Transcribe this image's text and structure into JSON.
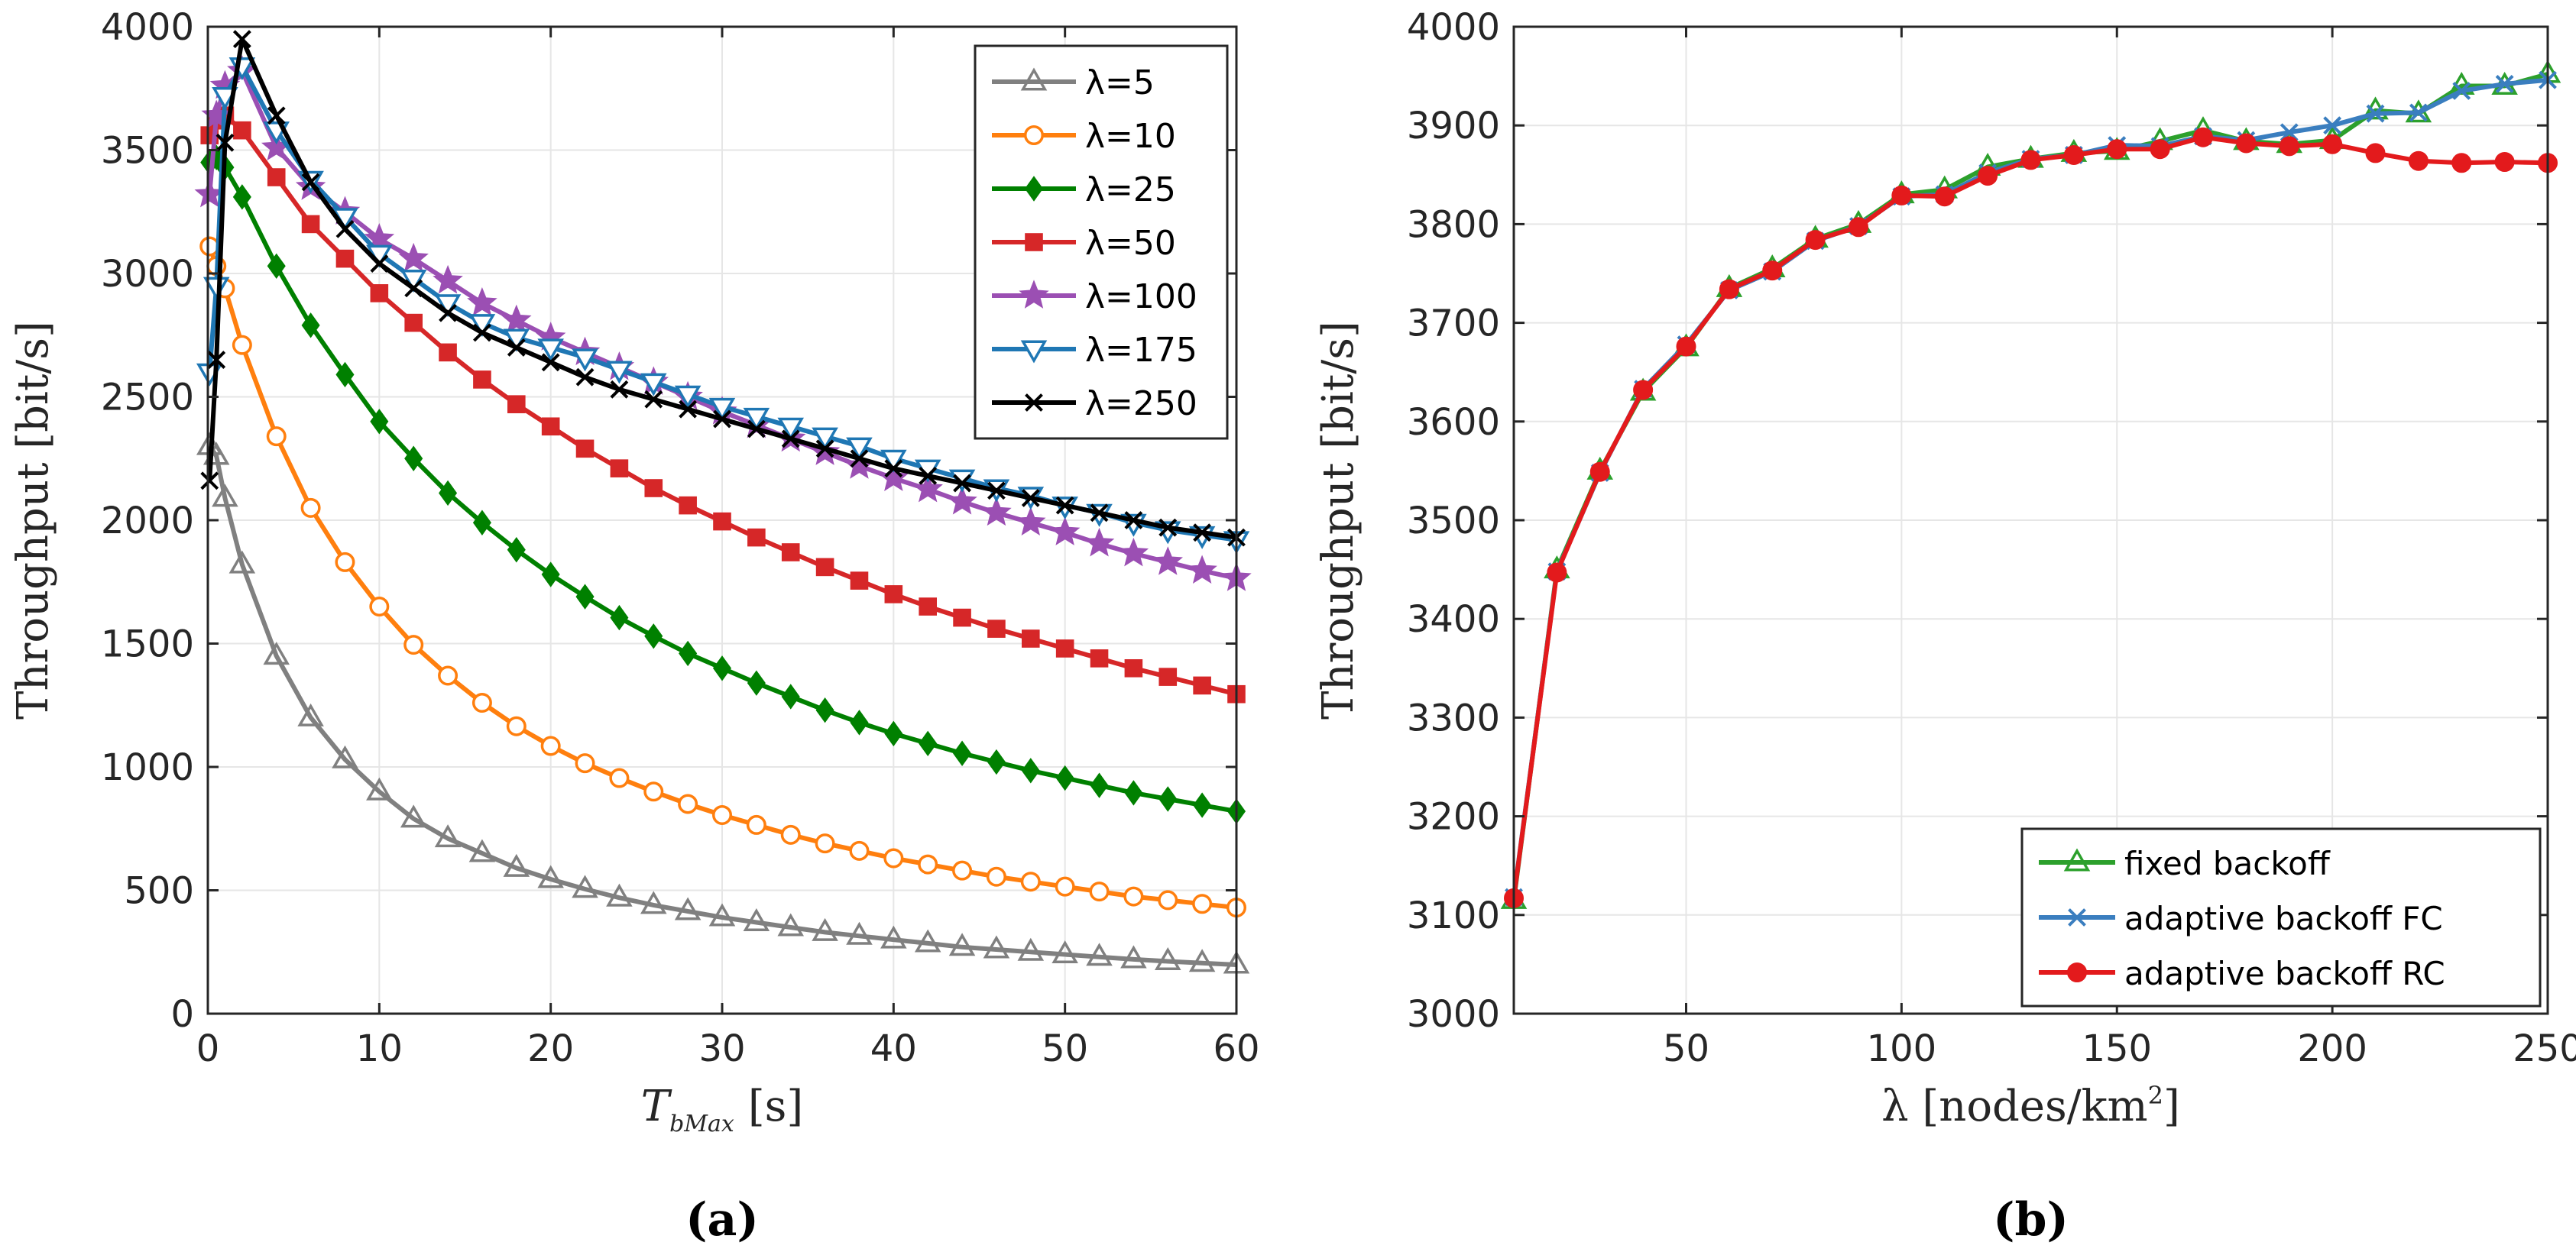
{
  "chart_data": [
    {
      "id": "a",
      "type": "line",
      "panel_label": "(a)",
      "xlabel": "T_bMax [s]",
      "xlabel_main": "T",
      "xlabel_sub": "bMax",
      "xlabel_unit": "[s]",
      "ylabel": "Throughput [bit/s]",
      "xlim": [
        0,
        60
      ],
      "ylim": [
        0,
        4000
      ],
      "xticks": [
        0,
        10,
        20,
        30,
        40,
        50,
        60
      ],
      "yticks": [
        0,
        500,
        1000,
        1500,
        2000,
        2500,
        3000,
        3500,
        4000
      ],
      "grid": true,
      "legend_position": "top-right",
      "x": [
        0.1,
        0.5,
        1,
        2,
        4,
        6,
        8,
        10,
        12,
        14,
        16,
        18,
        20,
        22,
        24,
        26,
        28,
        30,
        32,
        34,
        36,
        38,
        40,
        42,
        44,
        46,
        48,
        50,
        52,
        54,
        56,
        58,
        60
      ],
      "series": [
        {
          "name": "λ=5",
          "color": "#808080",
          "marker": "triangle-up",
          "values": [
            2300,
            2260,
            2090,
            1820,
            1450,
            1200,
            1030,
            900,
            790,
            710,
            650,
            590,
            545,
            505,
            470,
            440,
            415,
            390,
            370,
            350,
            330,
            315,
            300,
            285,
            270,
            260,
            250,
            240,
            230,
            220,
            212,
            205,
            198
          ]
        },
        {
          "name": "λ=10",
          "color": "#ff7f0e",
          "marker": "circle",
          "values": [
            3110,
            3030,
            2940,
            2710,
            2340,
            2050,
            1830,
            1650,
            1495,
            1370,
            1260,
            1165,
            1085,
            1015,
            955,
            900,
            850,
            805,
            765,
            725,
            690,
            660,
            630,
            605,
            580,
            555,
            535,
            515,
            495,
            475,
            460,
            445,
            430
          ]
        },
        {
          "name": "λ=25",
          "color": "#008000",
          "marker": "diamond",
          "values": [
            3450,
            3470,
            3430,
            3310,
            3030,
            2790,
            2590,
            2400,
            2250,
            2110,
            1990,
            1880,
            1780,
            1690,
            1605,
            1530,
            1460,
            1400,
            1340,
            1285,
            1230,
            1180,
            1135,
            1095,
            1055,
            1020,
            985,
            955,
            925,
            895,
            870,
            845,
            820
          ]
        },
        {
          "name": "λ=50",
          "color": "#d62728",
          "marker": "square",
          "values": [
            3560,
            3620,
            3640,
            3580,
            3390,
            3200,
            3060,
            2920,
            2800,
            2680,
            2570,
            2470,
            2380,
            2290,
            2210,
            2130,
            2060,
            1995,
            1930,
            1870,
            1810,
            1755,
            1700,
            1650,
            1605,
            1560,
            1520,
            1480,
            1440,
            1400,
            1365,
            1330,
            1295
          ]
        },
        {
          "name": "λ=100",
          "color": "#9b4fb3",
          "marker": "star",
          "values": [
            3320,
            3640,
            3760,
            3820,
            3510,
            3350,
            3250,
            3140,
            3060,
            2970,
            2880,
            2810,
            2740,
            2680,
            2620,
            2560,
            2500,
            2440,
            2385,
            2330,
            2275,
            2220,
            2170,
            2125,
            2075,
            2030,
            1990,
            1950,
            1905,
            1865,
            1830,
            1795,
            1765
          ]
        },
        {
          "name": "λ=175",
          "color": "#1f77b4",
          "marker": "triangle-down",
          "values": [
            2600,
            2950,
            3720,
            3840,
            3580,
            3380,
            3230,
            3080,
            2980,
            2880,
            2800,
            2740,
            2700,
            2660,
            2610,
            2560,
            2510,
            2460,
            2420,
            2380,
            2340,
            2300,
            2250,
            2210,
            2170,
            2130,
            2100,
            2060,
            2030,
            1990,
            1960,
            1940,
            1920
          ]
        },
        {
          "name": "λ=250",
          "color": "#000000",
          "marker": "x",
          "values": [
            2160,
            2650,
            3530,
            3950,
            3640,
            3370,
            3180,
            3040,
            2940,
            2840,
            2760,
            2700,
            2640,
            2580,
            2530,
            2490,
            2450,
            2410,
            2370,
            2330,
            2290,
            2250,
            2210,
            2180,
            2150,
            2120,
            2090,
            2060,
            2030,
            2000,
            1970,
            1950,
            1930
          ]
        }
      ]
    },
    {
      "id": "b",
      "type": "line",
      "panel_label": "(b)",
      "xlabel": "λ [nodes/km²]",
      "xlabel_main": "λ [nodes/km",
      "xlabel_sup": "2",
      "xlabel_close": "]",
      "ylabel": "Throughput [bit/s]",
      "xlim": [
        10,
        250
      ],
      "ylim": [
        3000,
        4000
      ],
      "xticks": [
        50,
        100,
        150,
        200,
        250
      ],
      "yticks": [
        3000,
        3100,
        3200,
        3300,
        3400,
        3500,
        3600,
        3700,
        3800,
        3900,
        4000
      ],
      "grid": true,
      "legend_position": "bottom-right",
      "x": [
        10,
        20,
        30,
        40,
        50,
        60,
        70,
        80,
        90,
        100,
        110,
        120,
        130,
        140,
        150,
        160,
        170,
        180,
        190,
        200,
        210,
        220,
        230,
        240,
        250
      ],
      "series": [
        {
          "name": "fixed backoff",
          "color": "#2ca02c",
          "marker": "triangle-up",
          "values": [
            3115,
            3450,
            3550,
            3630,
            3675,
            3735,
            3755,
            3785,
            3800,
            3830,
            3835,
            3858,
            3866,
            3872,
            3874,
            3884,
            3895,
            3884,
            3881,
            3885,
            3915,
            3912,
            3940,
            3940,
            3952
          ]
        },
        {
          "name": "adaptive backoff FC",
          "color": "#3a7ebf",
          "marker": "x",
          "values": [
            3118,
            3448,
            3548,
            3633,
            3678,
            3733,
            3752,
            3783,
            3798,
            3828,
            3830,
            3852,
            3866,
            3870,
            3880,
            3879,
            3889,
            3885,
            3893,
            3900,
            3912,
            3913,
            3935,
            3942,
            3946
          ]
        },
        {
          "name": "adaptive backoff RC",
          "color": "#e31a1c",
          "marker": "circle",
          "values": [
            3117,
            3447,
            3549,
            3632,
            3676,
            3734,
            3753,
            3784,
            3797,
            3829,
            3828,
            3849,
            3865,
            3870,
            3876,
            3876,
            3888,
            3882,
            3879,
            3881,
            3872,
            3864,
            3862,
            3863,
            3862
          ]
        }
      ]
    }
  ]
}
